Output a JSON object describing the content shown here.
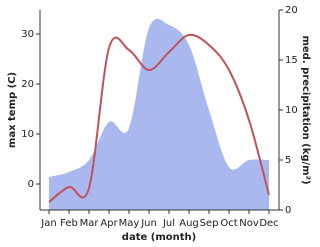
{
  "chart_data": {
    "type": "line-area",
    "categories": [
      "Jan",
      "Feb",
      "Mar",
      "Apr",
      "May",
      "Jun",
      "Jul",
      "Aug",
      "Sep",
      "Oct",
      "Nov",
      "Dec"
    ],
    "x_label": "date (month)",
    "y_label": "max temp (C)",
    "y2_label": "med. precipitation (kg/m²)",
    "series": [
      {
        "name": "max temp",
        "kind": "line",
        "color": "#c0535a",
        "values": [
          -3.6,
          -0.6,
          -0.8,
          27.2,
          26.8,
          22.8,
          26.4,
          29.8,
          27.8,
          22.8,
          12.8,
          -2.2
        ]
      },
      {
        "name": "med. precipitation",
        "kind": "area",
        "axis": "y2",
        "color": "#aab8f0",
        "values": [
          3.3,
          3.8,
          5,
          8.8,
          8.2,
          18.2,
          18.5,
          16.5,
          10,
          4.3,
          5,
          5
        ]
      }
    ],
    "ylim": [
      -5.2,
      34.8
    ],
    "yticks": [
      0,
      10,
      20,
      30
    ],
    "y2lim": [
      0,
      20
    ],
    "y2ticks": [
      0,
      5,
      10,
      15,
      20
    ],
    "grid": false
  }
}
